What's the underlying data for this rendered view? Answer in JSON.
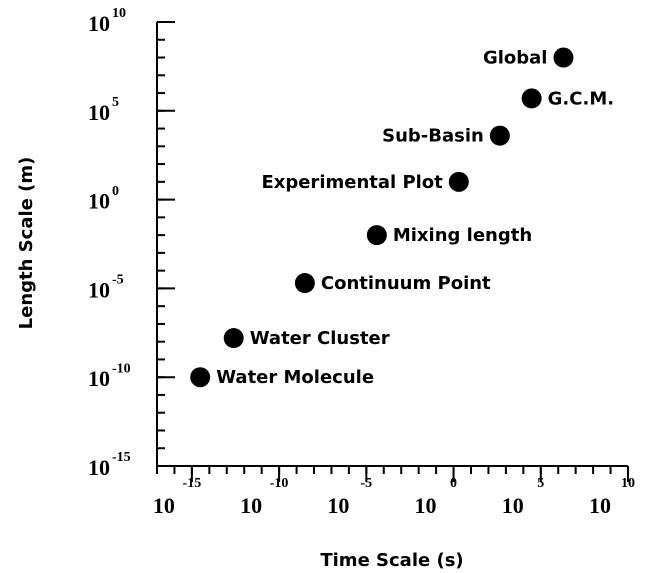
{
  "chart_data": {
    "type": "scatter",
    "xlabel": "Time Scale (s)",
    "ylabel": "Length Scale (m)",
    "xscale": "log",
    "yscale": "log",
    "xlim": [
      1e-17,
      10000000000.0
    ],
    "ylim": [
      1e-15,
      10000000000.0
    ],
    "xticks": [
      {
        "value": 1e-15,
        "label": "10",
        "exponent": "-15"
      },
      {
        "value": 1e-10,
        "label": "10",
        "exponent": "-10"
      },
      {
        "value": 1e-05,
        "label": "10",
        "exponent": "-5"
      },
      {
        "value": 1,
        "label": "10",
        "exponent": "0"
      },
      {
        "value": 100000.0,
        "label": "10",
        "exponent": "5"
      },
      {
        "value": 10000000000.0,
        "label": "10",
        "exponent": "10"
      }
    ],
    "yticks": [
      {
        "value": 1e-15,
        "label": "10",
        "exponent": "-15"
      },
      {
        "value": 1e-10,
        "label": "10",
        "exponent": "-10"
      },
      {
        "value": 1e-05,
        "label": "10",
        "exponent": "-5"
      },
      {
        "value": 1,
        "label": "10",
        "exponent": "0"
      },
      {
        "value": 100000.0,
        "label": "10",
        "exponent": "5"
      },
      {
        "value": 10000000000.0,
        "label": "10",
        "exponent": "10"
      }
    ],
    "color": "#000000",
    "labels": [
      "Water Molecule",
      "Water Cluster",
      "Continuum Point",
      "Mixing length",
      "Experimental Plot",
      "Sub-Basin",
      "G.C.M.",
      "Global"
    ],
    "x": [
      3e-15,
      2.5e-13,
      3e-09,
      4e-05,
      2,
      450,
      30000,
      2000000
    ],
    "values": [
      1e-10,
      1.6e-08,
      2e-05,
      0.01,
      10,
      4000,
      500000,
      100000000
    ]
  }
}
